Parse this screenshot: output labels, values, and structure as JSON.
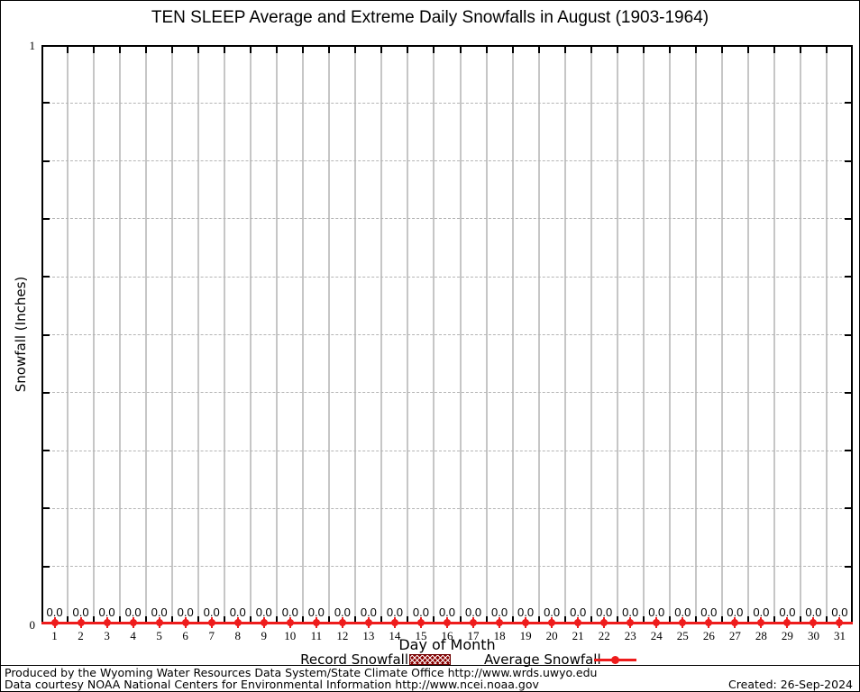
{
  "chart_data": {
    "type": "bar",
    "title": "TEN SLEEP Average and Extreme Daily Snowfalls in August (1903-1964)",
    "xlabel": "Day of Month",
    "ylabel": "Snowfall (Inches)",
    "ylim": [
      0,
      1
    ],
    "ytick_labels": [
      "0",
      "1"
    ],
    "y_minor_step": 0.1,
    "xlim": [
      0.5,
      31.5
    ],
    "categories": [
      1,
      2,
      3,
      4,
      5,
      6,
      7,
      8,
      9,
      10,
      11,
      12,
      13,
      14,
      15,
      16,
      17,
      18,
      19,
      20,
      21,
      22,
      23,
      24,
      25,
      26,
      27,
      28,
      29,
      30,
      31
    ],
    "series": [
      {
        "name": "Record Snowfall",
        "type": "bar",
        "color": "#8b0000",
        "pattern": "crosshatch",
        "values": [
          0,
          0,
          0,
          0,
          0,
          0,
          0,
          0,
          0,
          0,
          0,
          0,
          0,
          0,
          0,
          0,
          0,
          0,
          0,
          0,
          0,
          0,
          0,
          0,
          0,
          0,
          0,
          0,
          0,
          0,
          0
        ]
      },
      {
        "name": "Average Snowfall",
        "type": "line-points",
        "color": "#ee1c1c",
        "values": [
          0,
          0,
          0,
          0,
          0,
          0,
          0,
          0,
          0,
          0,
          0,
          0,
          0,
          0,
          0,
          0,
          0,
          0,
          0,
          0,
          0,
          0,
          0,
          0,
          0,
          0,
          0,
          0,
          0,
          0,
          0
        ]
      }
    ],
    "value_labels_shown": true,
    "legend_position": "bottom",
    "grid": {
      "vertical": "solid gray lines at day boundaries",
      "horizontal": "dashed gray lines every 0.1"
    }
  },
  "footer": {
    "line1": "Produced by the Wyoming Water Resources Data System/State Climate Office http://www.wrds.uwyo.edu",
    "line2": "Data courtesy NOAA National Centers for Environmental Information http://www.ncei.noaa.gov",
    "created": "Created: 26-Sep-2024"
  }
}
